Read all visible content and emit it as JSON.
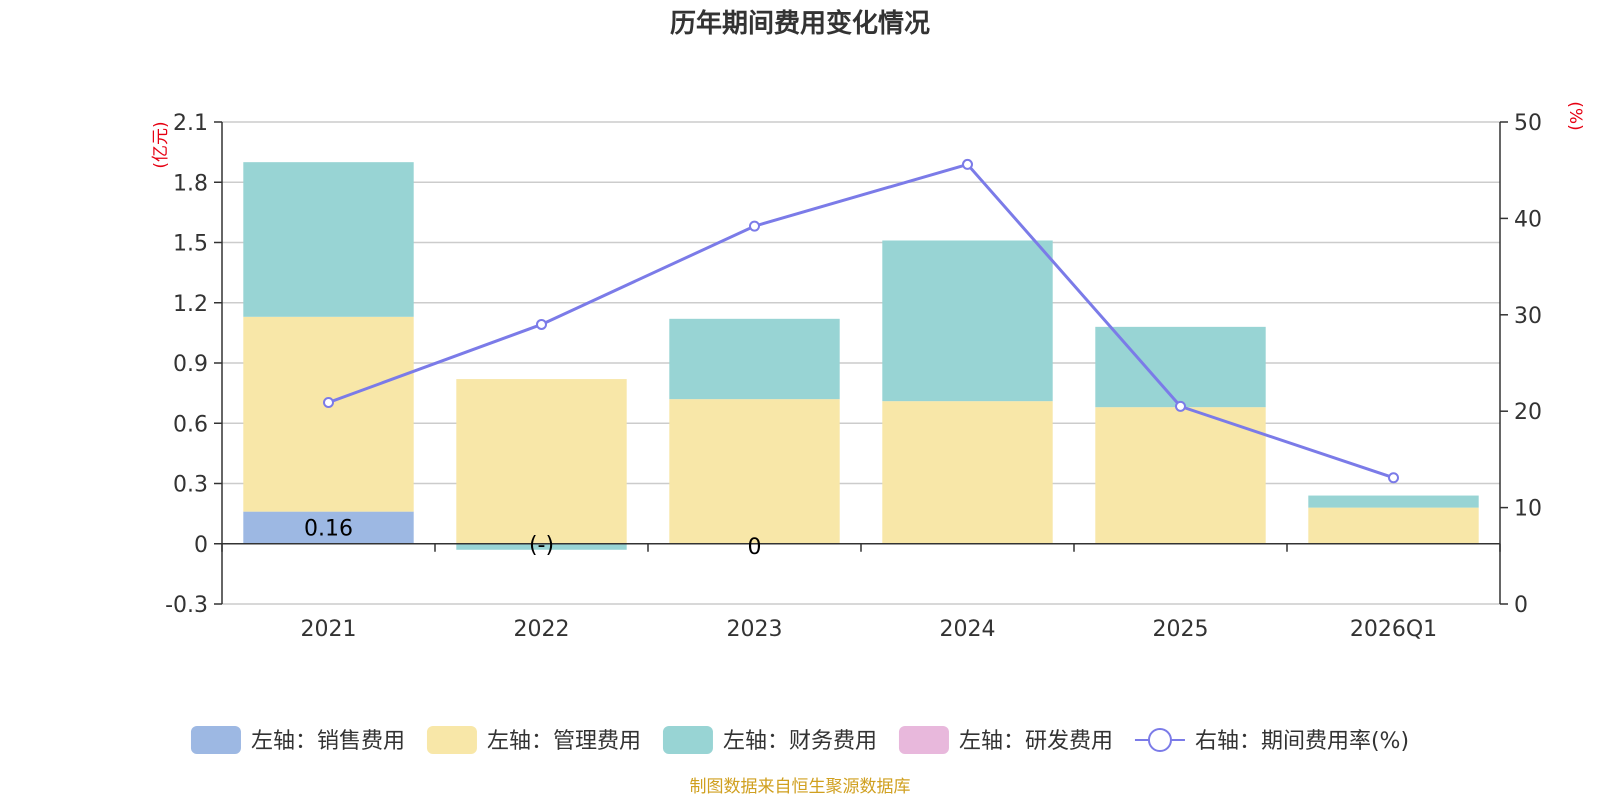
{
  "chart_data": {
    "type": "bar",
    "title": "历年期间费用变化情况",
    "categories": [
      "2021",
      "2022",
      "2023",
      "2024",
      "2025",
      "2026Q1"
    ],
    "left_axis": {
      "unit": "(亿元)",
      "ylim": [
        -0.3,
        2.1
      ],
      "ticks": [
        "-0.3",
        "0",
        "0.3",
        "0.6",
        "0.9",
        "1.2",
        "1.5",
        "1.8",
        "2.1"
      ],
      "tick_values": [
        -0.3,
        0,
        0.3,
        0.6,
        0.9,
        1.2,
        1.5,
        1.8,
        2.1
      ]
    },
    "right_axis": {
      "unit": "(%)",
      "ylim": [
        0,
        50
      ],
      "ticks": [
        "0",
        "10",
        "20",
        "30",
        "40",
        "50"
      ],
      "tick_values": [
        0,
        10,
        20,
        30,
        40,
        50
      ]
    },
    "series": [
      {
        "name": "左轴：销售费用",
        "type": "bar",
        "color": "#9db8e3",
        "values": [
          0.16,
          0,
          0,
          0,
          0,
          0
        ]
      },
      {
        "name": "左轴：管理费用",
        "type": "bar",
        "color": "#f8e7a8",
        "values": [
          0.97,
          0.82,
          0.72,
          0.71,
          0.68,
          0.18
        ]
      },
      {
        "name": "左轴：财务费用",
        "type": "bar",
        "color": "#98d4d4",
        "values": [
          0.77,
          -0.03,
          0.4,
          0.8,
          0.4,
          0.06
        ]
      },
      {
        "name": "左轴：研发费用",
        "type": "bar",
        "color": "#e8b8dc",
        "values": [
          0,
          0,
          0,
          0,
          0,
          0
        ]
      },
      {
        "name": "右轴：期间费用率(%)",
        "type": "line",
        "color": "#7b7be8",
        "values": [
          20.9,
          29.0,
          39.2,
          45.6,
          20.5,
          13.1
        ]
      }
    ],
    "data_labels": [
      "0.16",
      "(-)",
      "0"
    ]
  },
  "source_text": "制图数据来自恒生聚源数据库"
}
